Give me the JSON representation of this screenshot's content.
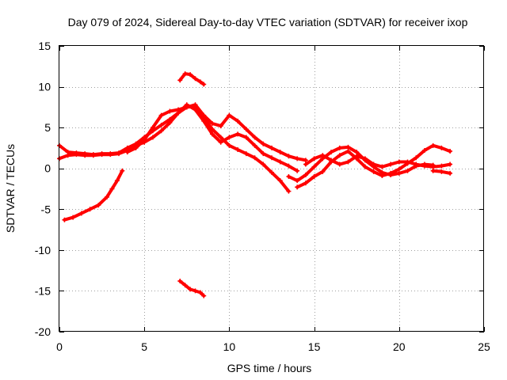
{
  "chart_data": {
    "type": "scatter",
    "title": "Day 079 of 2024, Sidereal Day-to-day VTEC variation (SDTVAR) for receiver ixop",
    "xlabel": "GPS time / hours",
    "ylabel": "SDTVAR / TECUs",
    "xlim": [
      0,
      25
    ],
    "ylim": [
      -20,
      15
    ],
    "x_ticks": [
      0,
      5,
      10,
      15,
      20,
      25
    ],
    "y_ticks": [
      -20,
      -15,
      -10,
      -5,
      0,
      5,
      10,
      15
    ],
    "grid": true,
    "legend": "none",
    "marker_color": "#ff0000",
    "series": [
      {
        "name": "trace-1",
        "x": [
          0.0,
          0.5,
          1.0,
          1.5,
          2.0,
          2.5,
          3.0,
          3.5,
          4.0,
          4.5,
          5.0,
          5.5,
          6.0,
          6.5,
          7.0,
          7.5,
          8.0,
          8.5,
          9.0,
          9.5,
          10.0,
          10.5,
          11.0,
          11.5,
          12.0,
          12.5,
          13.0,
          13.5
        ],
        "y": [
          2.8,
          2.0,
          1.9,
          1.8,
          1.7,
          1.8,
          1.8,
          1.9,
          2.5,
          3.0,
          3.8,
          4.6,
          5.3,
          6.0,
          6.8,
          7.5,
          7.6,
          6.2,
          4.8,
          3.8,
          2.8,
          2.3,
          1.8,
          1.3,
          0.5,
          -0.5,
          -1.5,
          -2.8
        ]
      },
      {
        "name": "trace-2",
        "x": [
          0.0,
          0.5,
          1.0,
          1.5,
          2.0,
          2.5,
          3.0,
          3.5,
          4.0,
          4.5,
          5.0,
          5.5,
          6.0,
          6.5,
          7.0,
          7.5,
          8.0,
          8.5,
          9.0,
          9.5,
          10.0,
          10.5,
          11.0,
          11.5,
          12.0,
          12.5,
          13.0,
          13.5,
          14.0
        ],
        "y": [
          1.2,
          1.6,
          1.7,
          1.6,
          1.6,
          1.7,
          1.7,
          1.8,
          2.2,
          2.8,
          3.2,
          3.8,
          4.6,
          5.6,
          6.8,
          7.8,
          7.2,
          5.8,
          4.2,
          3.2,
          3.8,
          4.2,
          3.8,
          2.8,
          1.8,
          1.3,
          0.8,
          0.3,
          -0.3
        ]
      },
      {
        "name": "trace-3",
        "x": [
          4.0,
          4.5,
          5.0,
          5.5,
          6.0,
          6.5,
          7.0,
          7.5,
          8.0,
          8.5,
          9.0,
          9.5,
          10.0,
          10.5,
          11.0,
          11.5,
          12.0,
          12.5,
          13.0,
          13.5,
          14.0,
          14.5
        ],
        "y": [
          2.0,
          2.5,
          3.5,
          5.0,
          6.5,
          7.0,
          7.2,
          7.5,
          7.8,
          6.5,
          5.5,
          5.2,
          6.5,
          5.8,
          4.8,
          3.8,
          3.0,
          2.5,
          2.0,
          1.5,
          1.2,
          1.0
        ]
      },
      {
        "name": "trace-4",
        "x": [
          13.5,
          14.0,
          14.5,
          15.0,
          15.5,
          16.0,
          16.5,
          17.0,
          17.5,
          18.0,
          18.5,
          19.0,
          19.5,
          20.0,
          20.5,
          21.0,
          21.5,
          22.0
        ],
        "y": [
          -1.0,
          -1.5,
          -0.8,
          0.2,
          1.2,
          2.0,
          2.5,
          2.6,
          2.0,
          1.0,
          0.2,
          -0.5,
          -0.8,
          -0.6,
          -0.3,
          0.3,
          0.5,
          0.4
        ]
      },
      {
        "name": "trace-5",
        "x": [
          14.0,
          14.5,
          15.0,
          15.5,
          16.0,
          16.5,
          17.0,
          17.5,
          18.0,
          18.5,
          19.0,
          19.5,
          20.0,
          20.5,
          21.0,
          21.5,
          22.0,
          22.5,
          23.0
        ],
        "y": [
          -2.3,
          -1.8,
          -1.0,
          -0.4,
          0.8,
          1.6,
          2.1,
          1.2,
          0.2,
          -0.4,
          -0.9,
          -0.6,
          -0.1,
          0.6,
          1.3,
          2.2,
          2.8,
          2.5,
          2.1
        ]
      },
      {
        "name": "trace-6",
        "x": [
          14.5,
          15.0,
          15.5,
          16.0,
          16.5,
          17.0,
          17.5,
          18.0,
          18.5,
          19.0,
          19.5,
          20.0,
          20.5,
          21.0,
          21.5,
          22.0,
          22.5,
          23.0
        ],
        "y": [
          0.5,
          1.2,
          1.6,
          1.0,
          0.5,
          0.8,
          1.5,
          1.2,
          0.5,
          0.2,
          0.5,
          0.8,
          0.8,
          0.5,
          0.3,
          0.2,
          0.3,
          0.5
        ]
      },
      {
        "name": "trace-7",
        "x": [
          22.0,
          22.5,
          23.0
        ],
        "y": [
          -0.3,
          -0.4,
          -0.6
        ]
      },
      {
        "name": "trace-8",
        "x": [
          0.3,
          0.8,
          1.3,
          1.8,
          2.3,
          2.8,
          3.1,
          3.4,
          3.7
        ],
        "y": [
          -6.3,
          -6.0,
          -5.5,
          -5.0,
          -4.5,
          -3.5,
          -2.5,
          -1.5,
          -0.3
        ]
      },
      {
        "name": "trace-9",
        "x": [
          7.1,
          7.4,
          7.7,
          8.0,
          8.3,
          8.5
        ],
        "y": [
          10.8,
          11.6,
          11.5,
          11.0,
          10.6,
          10.3
        ]
      },
      {
        "name": "trace-10",
        "x": [
          7.1,
          7.4,
          7.7,
          8.0,
          8.3,
          8.5
        ],
        "y": [
          -13.8,
          -14.3,
          -14.8,
          -15.0,
          -15.2,
          -15.6
        ]
      }
    ]
  }
}
